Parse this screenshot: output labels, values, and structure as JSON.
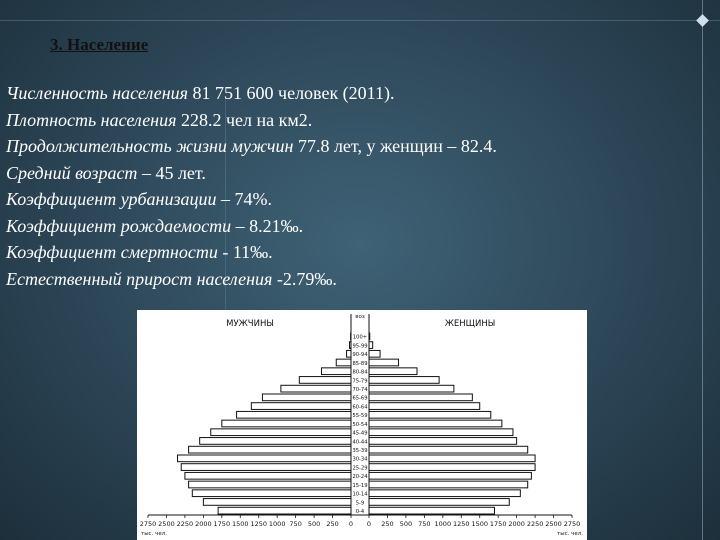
{
  "slide": {
    "heading": "3. Население",
    "facts": [
      {
        "label": "Численность населения",
        "value": " 81 751 600 человек (2011)."
      },
      {
        "label": "Плотность населения",
        "value": " 228.2 чел на км2."
      },
      {
        "label": "Продолжительность жизни мужчин",
        "value": " 77.8 лет, у женщин – 82.4."
      },
      {
        "label": "Средний возраст",
        "value": " – 45 лет."
      },
      {
        "label": "Коэффициент урбанизации",
        "value": " – 74%."
      },
      {
        "label": "Коэффициент рождаемости",
        "value": " – 8.21‰."
      },
      {
        "label": "Коэффициент смертности",
        "value": " - 11‰."
      },
      {
        "label": "Естественный прирост населения",
        "value": " -2.79‰."
      }
    ]
  },
  "chart_data": {
    "type": "bar",
    "orientation": "horizontal-pyramid",
    "left_label": "МУЖЧИНЫ",
    "right_label": "ЖЕНЩИНЫ",
    "age_header": "воз",
    "categories": [
      "0-4",
      "5-9",
      "10-14",
      "15-19",
      "20-24",
      "25-29",
      "30-34",
      "35-39",
      "40-44",
      "45-49",
      "50-54",
      "55-59",
      "60-64",
      "65-69",
      "70-74",
      "75-79",
      "80-84",
      "85-89",
      "90-94",
      "95-99",
      "100+"
    ],
    "series": [
      {
        "name": "МУЖЧИНЫ",
        "values": [
          1800,
          2000,
          2150,
          2200,
          2250,
          2300,
          2350,
          2200,
          2050,
          1900,
          1750,
          1550,
          1350,
          1200,
          950,
          700,
          400,
          200,
          60,
          20,
          5
        ]
      },
      {
        "name": "ЖЕНЩИНЫ",
        "values": [
          1700,
          1900,
          2050,
          2150,
          2200,
          2250,
          2250,
          2150,
          2000,
          1950,
          1800,
          1650,
          1500,
          1400,
          1150,
          950,
          650,
          400,
          150,
          50,
          10
        ]
      }
    ],
    "x_ticks_left": [
      "2750",
      "2500",
      "2250",
      "2000",
      "1750",
      "1500",
      "1250",
      "1000",
      "750",
      "500",
      "250",
      "0"
    ],
    "x_ticks_right": [
      "0",
      "250",
      "500",
      "750",
      "1000",
      "1250",
      "1500",
      "1750",
      "2000",
      "2250",
      "2500",
      "2750"
    ],
    "x_tick_values": [
      2750,
      2500,
      2250,
      2000,
      1750,
      1500,
      1250,
      1000,
      750,
      500,
      250,
      0
    ],
    "units_label": "тыс. чел.",
    "xlim": [
      0,
      2750
    ]
  }
}
